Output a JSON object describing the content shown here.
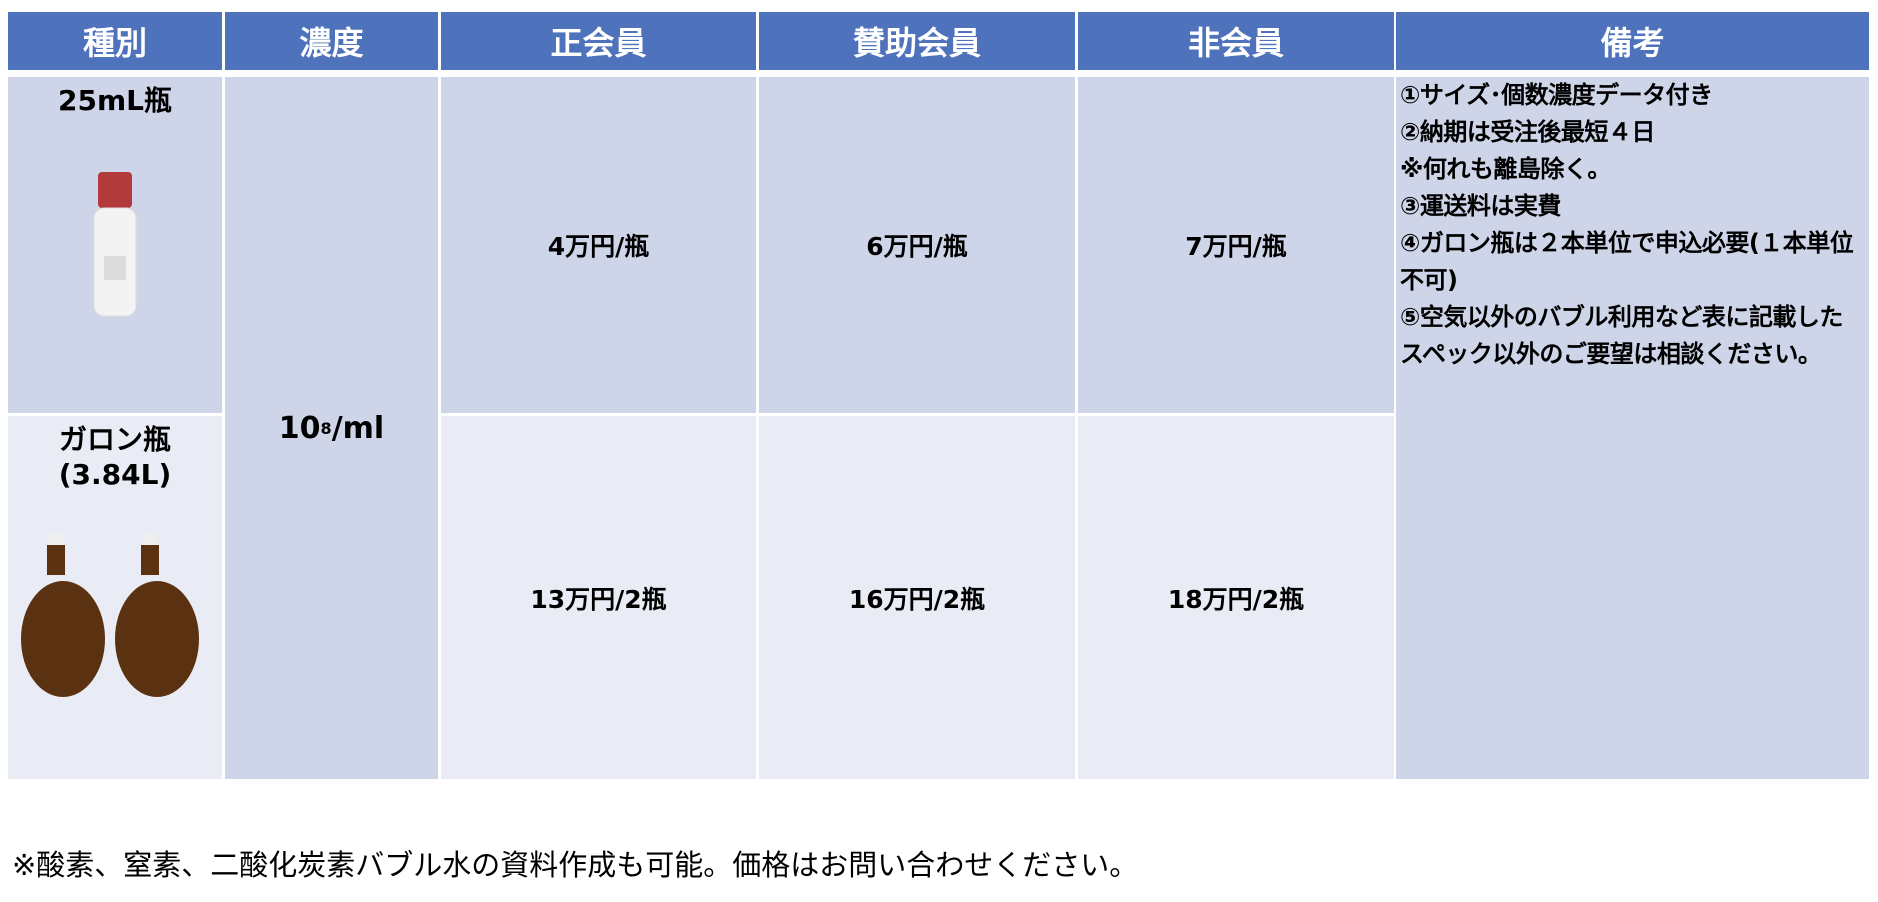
{
  "header": {
    "type": "種別",
    "concentration": "濃度",
    "regular": "正会員",
    "supporting": "賛助会員",
    "non_member": "非会員",
    "notes": "備考"
  },
  "rows": [
    {
      "type": "25mL瓶",
      "regular": "4万円/瓶",
      "supporting": "6万円/瓶",
      "non_member": "7万円/瓶"
    },
    {
      "type": "ガロン瓶",
      "type_sub": "(3.84L)",
      "regular": "13万円/2瓶",
      "supporting": "16万円/2瓶",
      "non_member": "18万円/2瓶"
    }
  ],
  "concentration": {
    "base": "10",
    "exp": "8",
    "unit": "/ml"
  },
  "notes": [
    "①サイズ･個数濃度データ付き",
    "②納期は受注後最短４日",
    "※何れも離島除く。",
    "③運送料は実費",
    "④ガロン瓶は２本単位で申込必要(１本単位不可)",
    "⑤空気以外のバブル利用など表に記載したスペック以外のご要望は相談ください。"
  ],
  "footer": "※酸素、窒素、二酸化炭素バブル水の資料作成も可能。価格はお問い合わせください。",
  "colors": {
    "header": "#4f72bd",
    "row_dark": "#cfd5e8",
    "row_light": "#e9ebf5"
  }
}
